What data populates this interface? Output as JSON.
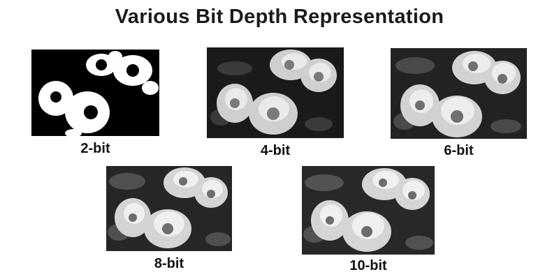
{
  "title": "Various Bit Depth Representation",
  "panels": [
    {
      "label": "2-bit"
    },
    {
      "label": "4-bit"
    },
    {
      "label": "6-bit"
    },
    {
      "label": "8-bit"
    },
    {
      "label": "10-bit"
    }
  ]
}
